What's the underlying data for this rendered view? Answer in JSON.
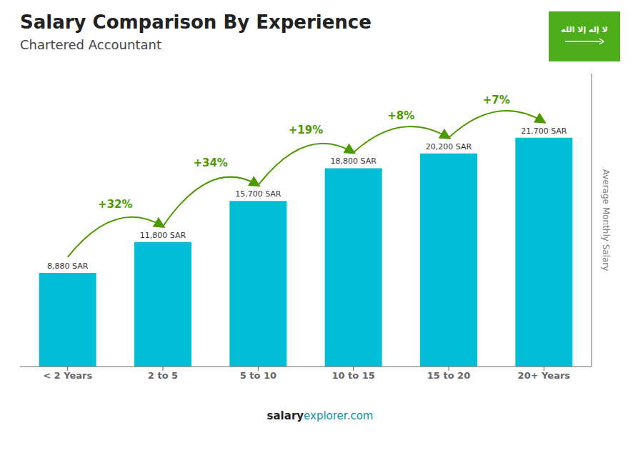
{
  "chart_data": {
    "type": "bar",
    "title": "Salary Comparison By Experience",
    "subtitle": "Chartered Accountant",
    "y_label": "Average Monthly Salary",
    "categories": [
      "< 2 Years",
      "2 to 5",
      "5 to 10",
      "10 to 15",
      "15 to 20",
      "20+ Years"
    ],
    "values": [
      8880,
      11800,
      15700,
      18800,
      20200,
      21700
    ],
    "value_labels": [
      "8,880 SAR",
      "11,800 SAR",
      "15,700 SAR",
      "18,800 SAR",
      "20,200 SAR",
      "21,700 SAR"
    ],
    "data_labels": true,
    "color": "#00bcd4",
    "ylim": [
      0,
      27776
    ],
    "tick_labels": "x",
    "grid": false,
    "annotations": [
      {
        "text": "+32%",
        "from": "< 2 Years",
        "to": "2 to 5"
      },
      {
        "text": "+34%",
        "from": "2 to 5",
        "to": "5 to 10"
      },
      {
        "text": "+19%",
        "from": "5 to 10",
        "to": "10 to 15"
      },
      {
        "text": "+8%",
        "from": "10 to 15",
        "to": "15 to 20"
      },
      {
        "text": "+7%",
        "from": "15 to 20",
        "to": "20+ Years"
      }
    ],
    "footer": [
      "salary",
      "explorer.com"
    ],
    "badge": {
      "text": "لا إله إلا الله",
      "color": "#4caf1a"
    }
  }
}
